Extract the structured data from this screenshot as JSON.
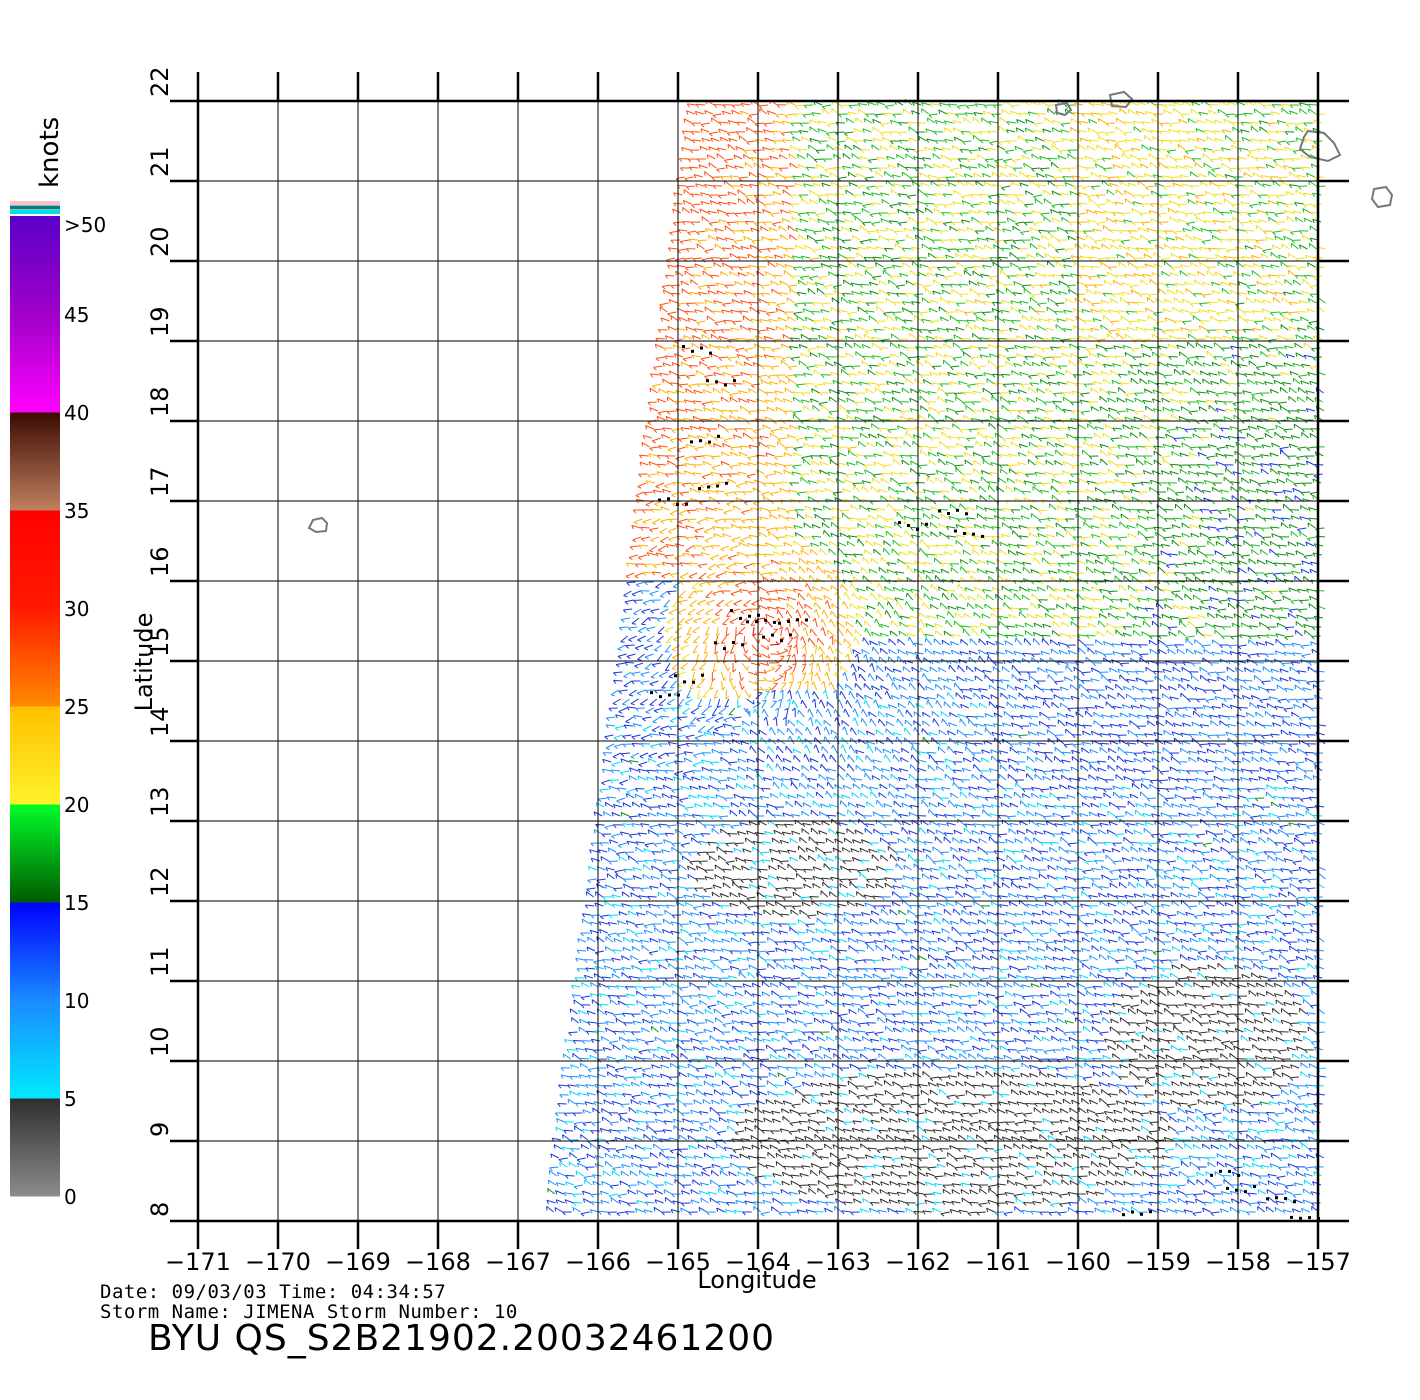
{
  "legend": {
    "unit_label": "knots",
    "bins": [
      {
        "label": "0",
        "colors": [
          "#8c8c8c",
          "#2e2e2e"
        ]
      },
      {
        "label": "5",
        "colors": [
          "#00eaff",
          "#1a8bff"
        ]
      },
      {
        "label": "10",
        "colors": [
          "#1a8bff",
          "#0000ff"
        ]
      },
      {
        "label": "15",
        "colors": [
          "#005a00",
          "#00ff2a"
        ]
      },
      {
        "label": "20",
        "colors": [
          "#fff22a",
          "#ffc000"
        ]
      },
      {
        "label": "25",
        "colors": [
          "#ff8a00",
          "#ff1a00"
        ]
      },
      {
        "label": "30",
        "colors": [
          "#ff1a00",
          "#ff0000"
        ]
      },
      {
        "label": "35",
        "colors": [
          "#c08060",
          "#3a0a00"
        ]
      },
      {
        "label": "40",
        "colors": [
          "#ff00ff",
          "#a000c8"
        ]
      },
      {
        "label": "45",
        "colors": [
          "#a000c8",
          "#5a00c8"
        ]
      }
    ],
    "top_label": ">50",
    "top_swatches": [
      "#ffc0cb",
      "#008080",
      "#00e0e0"
    ]
  },
  "map": {
    "xlabel": "Longitude",
    "ylabel": "Latitude",
    "lon_range": [
      -171,
      -157
    ],
    "lat_range": [
      8,
      22
    ],
    "lon_ticks": [
      "−171",
      "−170",
      "−169",
      "−168",
      "−167",
      "−166",
      "−165",
      "−164",
      "−163",
      "−162",
      "−161",
      "−160",
      "−159",
      "−158",
      "−157"
    ],
    "lat_ticks": [
      "8",
      "9",
      "10",
      "11",
      "12",
      "13",
      "14",
      "15",
      "16",
      "17",
      "18",
      "19",
      "20",
      "21",
      "22"
    ],
    "swath": {
      "corners_lonlat": [
        [
          -164.8,
          22
        ],
        [
          -156.9,
          22
        ],
        [
          -156.9,
          8
        ],
        [
          -166.6,
          8
        ]
      ]
    },
    "islands": [
      {
        "name": "",
        "lonlat": [
          -169.5,
          16.7
        ]
      },
      {
        "name": "",
        "lonlat": [
          -157.0,
          21.45
        ]
      },
      {
        "name": "",
        "lonlat": [
          -159.5,
          22.0
        ]
      },
      {
        "name": "",
        "lonlat": [
          -160.2,
          21.9
        ]
      },
      {
        "name": "",
        "lonlat": [
          -156.2,
          20.8
        ]
      }
    ]
  },
  "caption": {
    "line1": "Date: 09/03/03   Time: 04:34:57",
    "line2": "Storm Name: JIMENA   Storm Number: 10",
    "title": "BYU  QS_S2B21902.20032461200"
  }
}
